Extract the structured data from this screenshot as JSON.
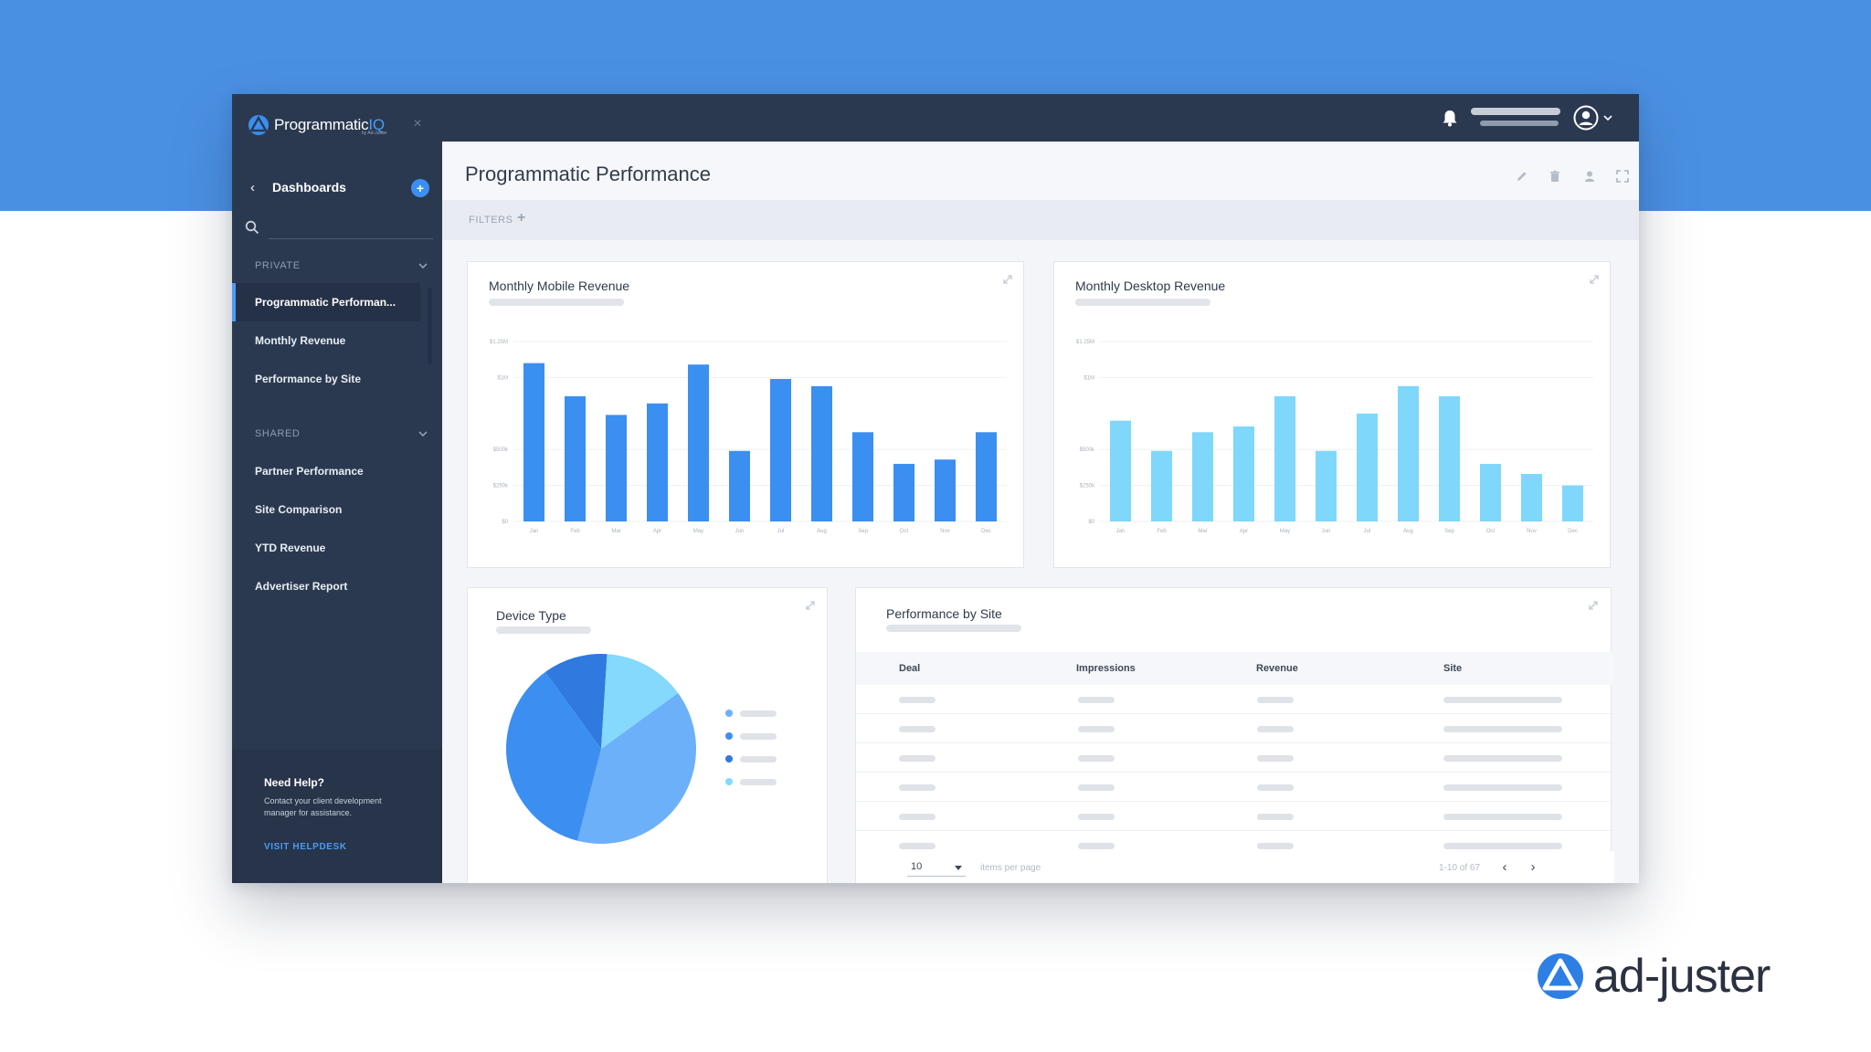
{
  "brand": {
    "name": "Programmatic",
    "name_suffix": "IQ",
    "tagline": "by Ad-Juster"
  },
  "sidebar": {
    "dashboards_label": "Dashboards",
    "search": {
      "value": "",
      "placeholder": ""
    },
    "sections": [
      {
        "label": "PRIVATE",
        "items": [
          {
            "label": "Programmatic Performan...",
            "active": true
          },
          {
            "label": "Monthly Revenue",
            "active": false
          },
          {
            "label": "Performance by Site",
            "active": false
          }
        ]
      },
      {
        "label": "SHARED",
        "items": [
          {
            "label": "Partner Performance",
            "active": false
          },
          {
            "label": "Site Comparison",
            "active": false
          },
          {
            "label": "YTD Revenue",
            "active": false
          },
          {
            "label": "Advertiser Report",
            "active": false
          }
        ]
      }
    ],
    "help": {
      "title": "Need Help?",
      "text": "Contact your client development manager for assistance.",
      "link": "VISIT HELPDESK"
    }
  },
  "header": {
    "title": "Programmatic Performance",
    "tools": [
      "pencil-icon",
      "trash-icon",
      "user-icon",
      "fullscreen-icon"
    ]
  },
  "filters": {
    "label": "FILTERS",
    "add": "+"
  },
  "cards": {
    "mobile": {
      "title": "Monthly Mobile Revenue"
    },
    "desktop": {
      "title": "Monthly Desktop Revenue"
    },
    "device": {
      "title": "Device Type"
    },
    "site": {
      "title": "Performance by Site"
    }
  },
  "table": {
    "columns": [
      "Deal",
      "Impressions",
      "Revenue",
      "Site"
    ],
    "per_page": "10",
    "per_page_label": "items per page",
    "range": "1-10 of 67"
  },
  "colors": {
    "accent": "#4a90e2",
    "sidebar": "#2b3950",
    "mobile_bar": "#3b8ff0",
    "desktop_bar": "#7fd7fb"
  },
  "footer": {
    "wordmark": "ad-juster"
  },
  "chart_data": [
    {
      "type": "bar",
      "title": "Monthly Mobile Revenue",
      "categories": [
        "Jan",
        "Feb",
        "Mar",
        "Apr",
        "May",
        "Jun",
        "Jul",
        "Aug",
        "Sep",
        "Oct",
        "Nov",
        "Dec"
      ],
      "y_ticks": [
        "$0",
        "$250k",
        "$500k",
        "$1M",
        "$1.25M"
      ],
      "values": [
        1.1,
        0.87,
        0.74,
        0.82,
        1.09,
        0.49,
        0.99,
        0.94,
        0.62,
        0.4,
        0.43,
        0.62
      ],
      "ylim": [
        0,
        1.25
      ],
      "grid": true
    },
    {
      "type": "bar",
      "title": "Monthly Desktop Revenue",
      "categories": [
        "Jan",
        "Feb",
        "Mar",
        "Apr",
        "May",
        "Jun",
        "Jul",
        "Aug",
        "Sep",
        "Oct",
        "Nov",
        "Dec"
      ],
      "y_ticks": [
        "$0",
        "$250k",
        "$500k",
        "$1M",
        "$1.25M"
      ],
      "values": [
        0.7,
        0.49,
        0.62,
        0.66,
        0.87,
        0.49,
        0.75,
        0.94,
        0.87,
        0.4,
        0.33,
        0.25
      ],
      "ylim": [
        0,
        1.25
      ],
      "grid": true
    },
    {
      "type": "pie",
      "title": "Device Type",
      "slices": [
        {
          "value": 39,
          "color": "#6cb0fa"
        },
        {
          "value": 36,
          "color": "#3b8ff0"
        },
        {
          "value": 11,
          "color": "#2f79df"
        },
        {
          "value": 14,
          "color": "#84d9fc"
        }
      ]
    }
  ]
}
